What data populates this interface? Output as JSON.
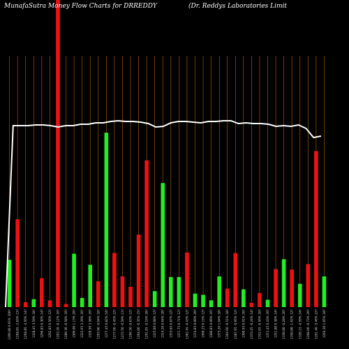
{
  "header": {
    "title": "MunafaSutra  Money Flow  Charts for DRREDDY",
    "company": "(Dr. Reddys Laboratories Limit"
  },
  "chart_data": {
    "type": "bar",
    "bars": [
      {
        "label": "1266.80 0.91% 100Y",
        "value": 77,
        "color": "green"
      },
      {
        "label": "1268.85 -2.83% 13Y",
        "value": 143,
        "color": "red"
      },
      {
        "label": "1268.85 -4.50% 14Y",
        "value": 8,
        "color": "red"
      },
      {
        "label": "1328.45 3.59% 18Y",
        "value": 13,
        "color": "green"
      },
      {
        "label": "1266.85 0.30% 14Y",
        "value": 47,
        "color": "red"
      },
      {
        "label": "1262.85 0.56% 12Y",
        "value": 11,
        "color": "red"
      },
      {
        "label": "1203.20 -0.12% 16Y",
        "value": 500,
        "color": "red"
      },
      {
        "label": "1289.30 -0.58% 10Y",
        "value": 5,
        "color": "red"
      },
      {
        "label": "1306.00 1.13% 20Y",
        "value": 87,
        "color": "green"
      },
      {
        "label": "1322.65 3.29% 16Y",
        "value": 15,
        "color": "green"
      },
      {
        "label": "1320.50 3.58% 16Y",
        "value": 69,
        "color": "green"
      },
      {
        "label": "1293.90 -0.04% 10Y",
        "value": 42,
        "color": "red"
      },
      {
        "label": "1277.45 0.82% 54Y",
        "value": 284,
        "color": "green"
      },
      {
        "label": "1277.00 -0.45% 22Y",
        "value": 88,
        "color": "red"
      },
      {
        "label": "1272.50 -0.59% 11Y",
        "value": 50,
        "color": "red"
      },
      {
        "label": "1266.50 -0.63% 12Y",
        "value": 33,
        "color": "red"
      },
      {
        "label": "1264.00 -0.35% 15Y",
        "value": 118,
        "color": "red"
      },
      {
        "label": "1291.85 -0.16% 28Y",
        "value": 239,
        "color": "red"
      },
      {
        "label": "1325.00 0.08% 12Y",
        "value": 26,
        "color": "green"
      },
      {
        "label": "1314.20 0.64% 28Y",
        "value": 202,
        "color": "green"
      },
      {
        "label": "1353.85 0.87% 22Y",
        "value": 49,
        "color": "green"
      },
      {
        "label": "1371.75 0.71% 12Y",
        "value": 49,
        "color": "green"
      },
      {
        "label": "1362.45 -0.43% 12Y",
        "value": 89,
        "color": "red"
      },
      {
        "label": "1374.85 0.09% 20Y",
        "value": 22,
        "color": "green"
      },
      {
        "label": "1369.25 0.15% 12Y",
        "value": 20,
        "color": "green"
      },
      {
        "label": "1380.85 0.09% 16Y",
        "value": 11,
        "color": "green"
      },
      {
        "label": "1373.20 1.04% 18Y",
        "value": 50,
        "color": "green"
      },
      {
        "label": "1364.60 -0.51% 18Y",
        "value": 30,
        "color": "red"
      },
      {
        "label": "1387.95 -0.95% 12Y",
        "value": 88,
        "color": "red"
      },
      {
        "label": "1390.95 0.91% 26Y",
        "value": 29,
        "color": "green"
      },
      {
        "label": "1374.45 -0.24% 14Y",
        "value": 7,
        "color": "red"
      },
      {
        "label": "1352.65 -0.56% 10Y",
        "value": 23,
        "color": "red"
      },
      {
        "label": "1371.45 0.43% 16Y",
        "value": 12,
        "color": "green"
      },
      {
        "label": "1351.80 0.38% 14Y",
        "value": 62,
        "color": "red"
      },
      {
        "label": "1330.80 -0.28% 20Y",
        "value": 78,
        "color": "green"
      },
      {
        "label": "1350.80 -1.62% 12Y",
        "value": 61,
        "color": "red"
      },
      {
        "label": "1320.15 -0.59% 24Y",
        "value": 38,
        "color": "green"
      },
      {
        "label": "1208.00 -0.73% 26Y",
        "value": 70,
        "color": "red"
      },
      {
        "label": "1201.40 -5.46% 22Y",
        "value": 254,
        "color": "red"
      },
      {
        "label": "1264.20 1.05% 18Y",
        "value": 50,
        "color": "green"
      }
    ],
    "line": [
      0,
      12,
      12,
      12,
      11,
      11,
      12,
      14,
      12,
      12,
      10,
      10,
      8,
      8,
      6,
      5,
      6,
      6,
      7,
      9,
      14,
      13,
      8,
      6,
      6,
      7,
      8,
      6,
      6,
      5,
      5,
      9,
      8,
      9,
      9,
      10,
      13,
      12,
      13,
      11,
      16,
      29,
      27
    ],
    "colors": {
      "background": "#000000",
      "grid": "#b5650d",
      "up": "#22ee22",
      "down": "#ee1111",
      "line": "#ffffff"
    }
  }
}
